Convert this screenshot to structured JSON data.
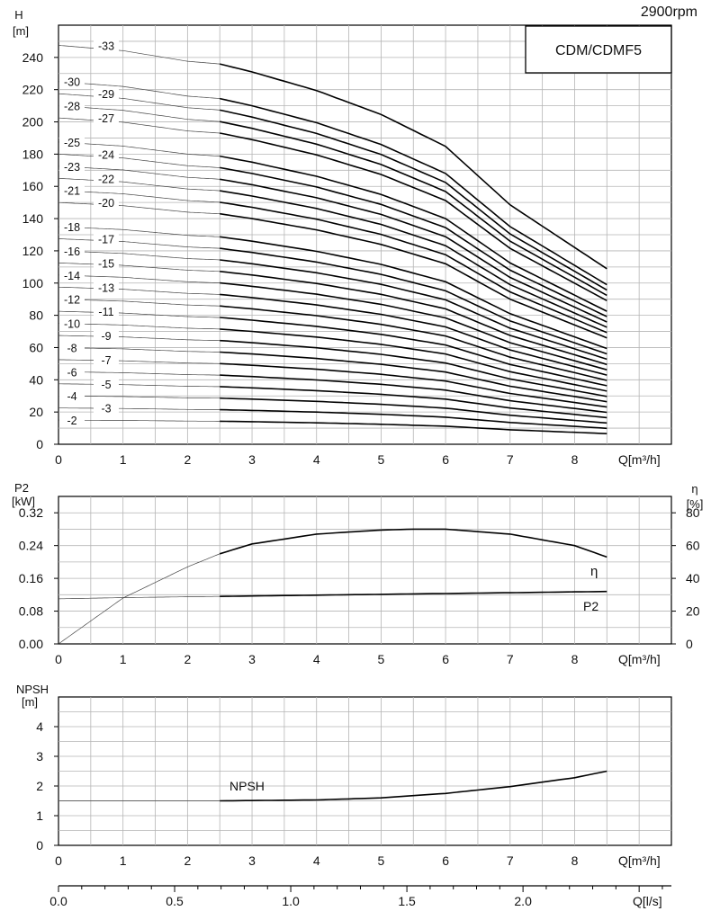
{
  "header": {
    "speed": "2900rpm",
    "model": "CDM/CDMF5"
  },
  "chart_data": [
    {
      "id": "head",
      "type": "line",
      "ylabel_top": "H",
      "ylabel_unit": "[m]",
      "xlabel": "Q[m³/h]",
      "xlim": [
        0,
        9.5
      ],
      "ylim": [
        0,
        260
      ],
      "y_ticks": [
        0,
        20,
        40,
        60,
        80,
        100,
        120,
        140,
        160,
        180,
        200,
        220,
        240
      ],
      "x_ticks": [
        0,
        1,
        2,
        3,
        4,
        5,
        6,
        7,
        8
      ],
      "grid": true,
      "x": [
        0,
        1,
        2,
        2.5,
        3,
        4,
        5,
        6,
        7,
        8,
        8.5
      ],
      "head_per_stage": [
        7.5,
        7.4,
        7.2,
        7.15,
        7.0,
        6.65,
        6.2,
        5.6,
        4.5,
        3.7,
        3.3
      ],
      "stages": [
        2,
        3,
        4,
        5,
        6,
        7,
        8,
        9,
        10,
        11,
        12,
        13,
        14,
        15,
        16,
        17,
        18,
        20,
        21,
        22,
        23,
        24,
        25,
        27,
        28,
        29,
        30,
        33
      ],
      "stage_labels": [
        "-2",
        "-3",
        "-4",
        "-5",
        "-6",
        "-7",
        "-8",
        "-9",
        "-10",
        "-11",
        "-12",
        "-13",
        "-14",
        "-15",
        "-16",
        "-17",
        "-18",
        "-20",
        "-21",
        "-22",
        "-23",
        "-24",
        "-25",
        "-27",
        "-28",
        "-29",
        "-30",
        "-33"
      ]
    },
    {
      "id": "power_efficiency",
      "type": "line",
      "ylabel_left_top": "P2",
      "ylabel_left_unit": "[kW]",
      "ylabel_right_top": "η",
      "ylabel_right_unit": "[%]",
      "xlabel": "Q[m³/h]",
      "xlim": [
        0,
        9.5
      ],
      "ylim_left": [
        0,
        0.36
      ],
      "ylim_right": [
        0,
        90
      ],
      "y_ticks_left": [
        "0.00",
        "0.08",
        "0.16",
        "0.24",
        "0.32"
      ],
      "y_ticks_right": [
        0,
        20,
        40,
        60,
        80
      ],
      "x_ticks": [
        0,
        1,
        2,
        3,
        4,
        5,
        6,
        7,
        8
      ],
      "grid": true,
      "series": [
        {
          "name": "η",
          "axis": "right",
          "x": [
            0,
            1,
            2,
            2.5,
            3,
            4,
            5,
            5.5,
            6,
            7,
            8,
            8.5
          ],
          "y": [
            0,
            28,
            47,
            55,
            61,
            67,
            69.5,
            70,
            70,
            67,
            60,
            53
          ]
        },
        {
          "name": "P2",
          "axis": "left",
          "x": [
            0,
            1,
            2,
            2.5,
            3,
            4,
            5,
            6,
            7,
            8,
            8.5
          ],
          "y": [
            0.11,
            0.113,
            0.115,
            0.116,
            0.117,
            0.119,
            0.121,
            0.123,
            0.125,
            0.127,
            0.128
          ]
        }
      ]
    },
    {
      "id": "npsh",
      "type": "line",
      "ylabel_top": "NPSH",
      "ylabel_unit": "[m]",
      "xlabel": "Q[m³/h]",
      "xlim": [
        0,
        9.5
      ],
      "ylim": [
        0,
        5
      ],
      "y_ticks": [
        0,
        1,
        2,
        3,
        4
      ],
      "x_ticks": [
        0,
        1,
        2,
        3,
        4,
        5,
        6,
        7,
        8
      ],
      "grid": true,
      "series": [
        {
          "name": "NPSH",
          "x": [
            0,
            1,
            2,
            2.5,
            3,
            4,
            5,
            6,
            7,
            8,
            8.5
          ],
          "y": [
            1.5,
            1.5,
            1.5,
            1.5,
            1.51,
            1.53,
            1.6,
            1.75,
            1.98,
            2.28,
            2.5
          ]
        }
      ]
    },
    {
      "id": "flow_ls_scale",
      "type": "line",
      "xlabel": "Q[l/s]",
      "x_ticks": [
        "0.0",
        "0.5",
        "1.0",
        "1.5",
        "2.0"
      ],
      "xlim": [
        0,
        9.5
      ],
      "tick_factor_m3h_per_ls": 3.6
    }
  ]
}
